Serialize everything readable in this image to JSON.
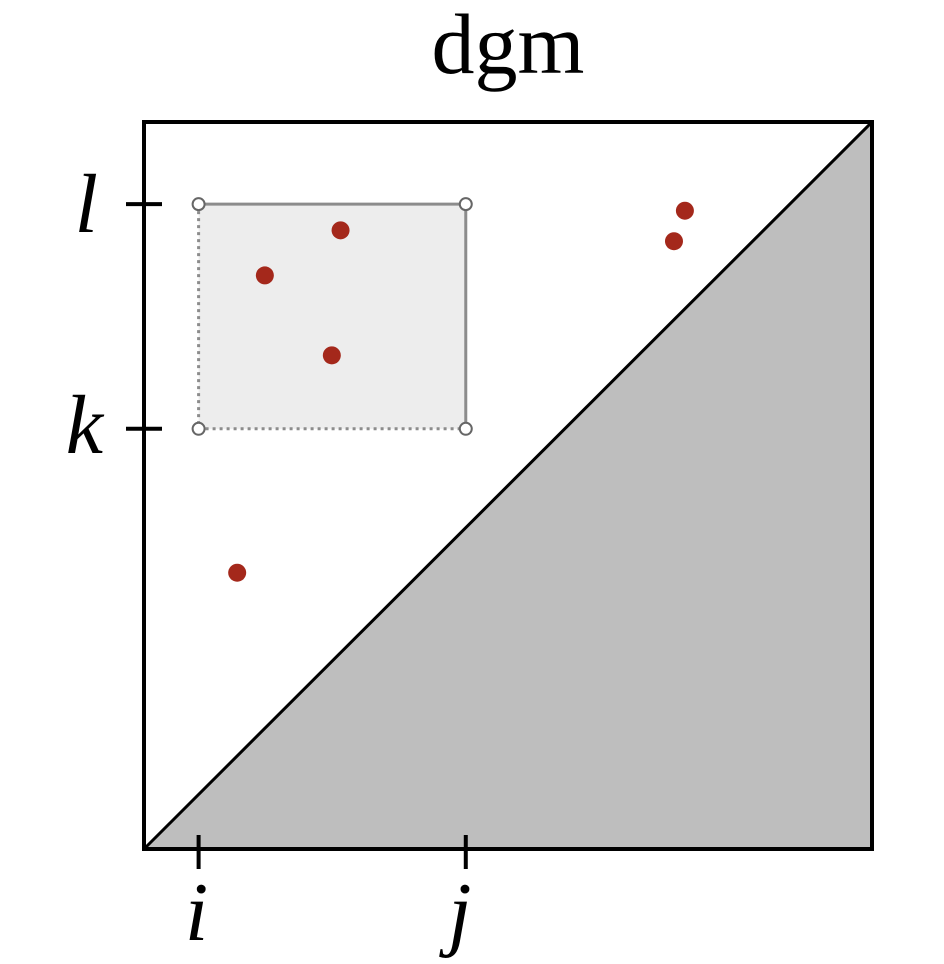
{
  "title": "dgm",
  "x_tick_labels": [
    "i",
    "j"
  ],
  "y_tick_labels": [
    "k",
    "l"
  ],
  "colors": {
    "point": "#a4281b",
    "diagonal_fill": "#bebebe",
    "box_fill": "#ededed",
    "box_stroke": "#8c8c8c",
    "frame": "#000000"
  },
  "diagram_data": {
    "type": "persistence-diagram",
    "domain": [
      0,
      1
    ],
    "ticks": {
      "i": 0.075,
      "j": 0.442,
      "k": 0.578,
      "l": 0.887
    },
    "box": {
      "x_range": [
        "i",
        "j"
      ],
      "y_range": [
        "k",
        "l"
      ],
      "left_edge": "dotted",
      "bottom_edge": "dotted",
      "right_edge": "solid",
      "top_edge": "solid",
      "corner_markers": "open-circle"
    },
    "points": [
      {
        "x": 0.166,
        "y": 0.789
      },
      {
        "x": 0.27,
        "y": 0.851
      },
      {
        "x": 0.258,
        "y": 0.679
      },
      {
        "x": 0.128,
        "y": 0.38
      },
      {
        "x": 0.728,
        "y": 0.836
      },
      {
        "x": 0.743,
        "y": 0.878
      }
    ]
  }
}
